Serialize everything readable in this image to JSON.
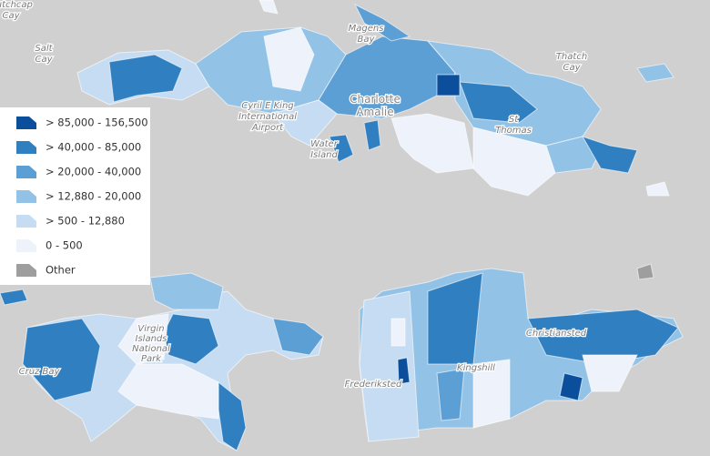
{
  "map": {
    "labels": [
      {
        "lines": [
          "Dutchcap",
          "Cay"
        ]
      },
      {
        "lines": [
          "Salt",
          "Cay"
        ]
      },
      {
        "lines": [
          "Magens",
          "Bay"
        ]
      },
      {
        "lines": [
          "Thatch",
          "Cay"
        ]
      },
      {
        "lines": [
          "Cyril E King",
          "International",
          "Airport"
        ]
      },
      {
        "lines": [
          "Charlotte",
          "Amalie"
        ]
      },
      {
        "lines": [
          "Water",
          "Island"
        ]
      },
      {
        "lines": [
          "St",
          "Thomas"
        ]
      },
      {
        "lines": [
          "Cruz Bay"
        ]
      },
      {
        "lines": [
          "Virgin",
          "Islands",
          "National",
          "Park"
        ]
      },
      {
        "lines": [
          "Frederiksted"
        ]
      },
      {
        "lines": [
          "Kingshill"
        ]
      },
      {
        "lines": [
          "Christiansted"
        ]
      }
    ]
  },
  "legend": {
    "items": [
      {
        "label": "> 85,000 - 156,500",
        "color": "#0b4f9c"
      },
      {
        "label": "> 40,000 - 85,000",
        "color": "#2f7fc1"
      },
      {
        "label": "> 20,000 - 40,000",
        "color": "#5c9fd5"
      },
      {
        "label": "> 12,880 - 20,000",
        "color": "#93c2e7"
      },
      {
        "label": "> 500 - 12,880",
        "color": "#c6dcf2"
      },
      {
        "label": "0 - 500",
        "color": "#eef3fb"
      },
      {
        "label": "Other",
        "color": "#9e9e9e"
      }
    ]
  }
}
